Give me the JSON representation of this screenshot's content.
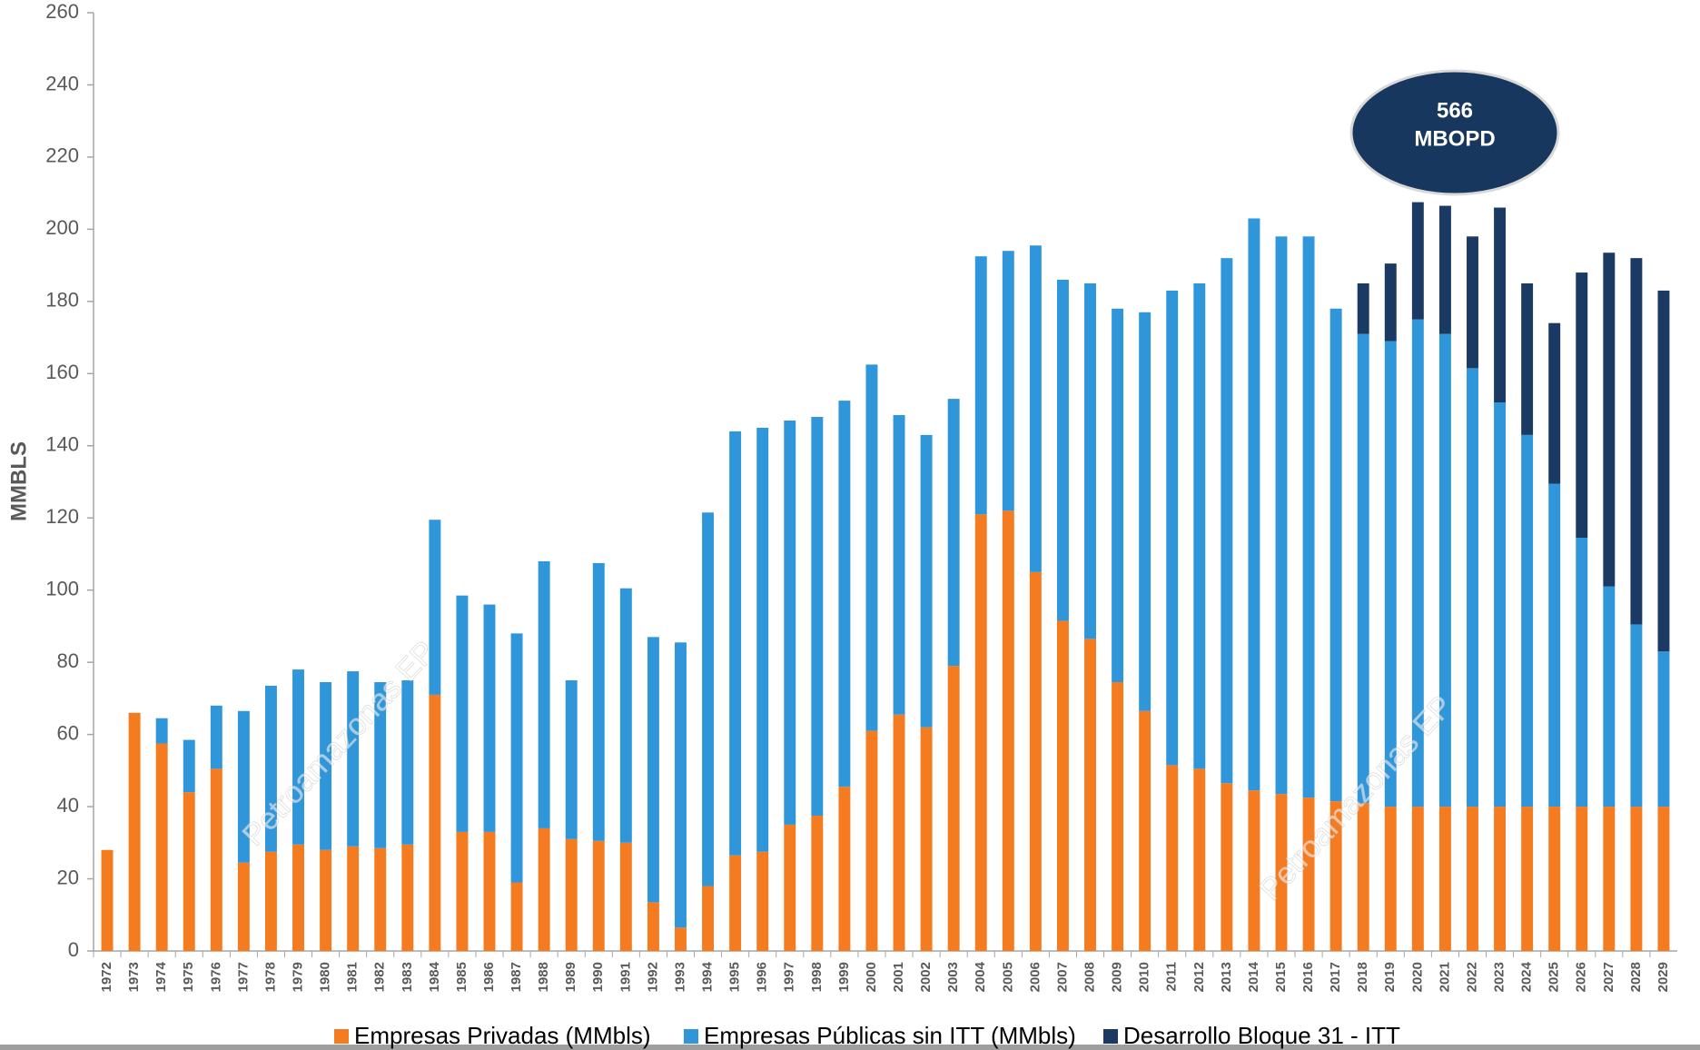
{
  "chart_data": {
    "type": "stacked_bar",
    "y_label": "MMBLS",
    "categories": [
      "1972",
      "1973",
      "1974",
      "1975",
      "1976",
      "1977",
      "1978",
      "1979",
      "1980",
      "1981",
      "1982",
      "1983",
      "1984",
      "1985",
      "1986",
      "1987",
      "1988",
      "1989",
      "1990",
      "1991",
      "1992",
      "1993",
      "1994",
      "1995",
      "1996",
      "1997",
      "1998",
      "1999",
      "2000",
      "2001",
      "2002",
      "2003",
      "2004",
      "2005",
      "2006",
      "2007",
      "2008",
      "2009",
      "2010",
      "2011",
      "2012",
      "2013",
      "2014",
      "2015",
      "2016",
      "2017",
      "2018",
      "2019",
      "2020",
      "2021",
      "2022",
      "2023",
      "2024",
      "2025",
      "2026",
      "2027",
      "2028",
      "2029"
    ],
    "series": [
      {
        "name": "Empresas Privadas (MMbls)",
        "color": "#f47b20",
        "values": [
          28,
          66,
          57.5,
          44,
          50.5,
          24.5,
          27.5,
          29.5,
          28,
          29,
          28.5,
          29.5,
          71,
          33,
          33,
          19,
          34,
          31,
          30.5,
          30,
          13.5,
          6.5,
          18,
          26.5,
          27.5,
          35,
          37.5,
          45.5,
          61,
          65.5,
          62,
          79,
          121,
          122,
          105,
          91.5,
          86.5,
          74.5,
          66.5,
          51.5,
          50.5,
          46.5,
          44.5,
          43.5,
          42.5,
          41.5,
          41,
          40,
          40,
          40,
          40,
          40,
          40,
          40,
          40,
          40,
          40,
          40
        ]
      },
      {
        "name": "Empresas Públicas sin ITT (MMbls)",
        "color": "#2f96d9",
        "values": [
          0,
          0,
          7,
          14.5,
          17.5,
          42,
          46,
          48.5,
          46.5,
          48.5,
          46,
          45.5,
          48.5,
          65.5,
          63,
          69,
          74,
          44,
          77,
          70.5,
          73.5,
          79,
          103.5,
          117.5,
          117.5,
          112,
          110.5,
          107,
          101.5,
          83,
          81,
          74,
          71.5,
          72,
          90.5,
          94.5,
          98.5,
          103.5,
          110.5,
          131.5,
          134.5,
          145.5,
          158.5,
          154.5,
          155.5,
          136.5,
          130,
          129,
          135,
          131,
          121.5,
          112,
          103,
          89.5,
          74.5,
          61,
          50.5,
          43
        ]
      },
      {
        "name": "Desarrollo Bloque 31 - ITT",
        "color": "#1a3a63",
        "values": [
          0,
          0,
          0,
          0,
          0,
          0,
          0,
          0,
          0,
          0,
          0,
          0,
          0,
          0,
          0,
          0,
          0,
          0,
          0,
          0,
          0,
          0,
          0,
          0,
          0,
          0,
          0,
          0,
          0,
          0,
          0,
          0,
          0,
          0,
          0,
          0,
          0,
          0,
          0,
          0,
          0,
          0,
          0,
          0,
          0,
          0,
          14,
          21.5,
          32.5,
          35.5,
          36.5,
          54,
          42,
          44.5,
          73.5,
          92.5,
          101.5,
          100
        ]
      }
    ],
    "ylim": [
      0,
      260
    ],
    "yticks": [
      0,
      20,
      40,
      60,
      80,
      100,
      120,
      140,
      160,
      180,
      200,
      220,
      240,
      260
    ],
    "annotation": [
      "566",
      "MBOPD"
    ],
    "watermarks": [
      "Petroamazonas EP",
      "Petroamazonas EP"
    ]
  }
}
